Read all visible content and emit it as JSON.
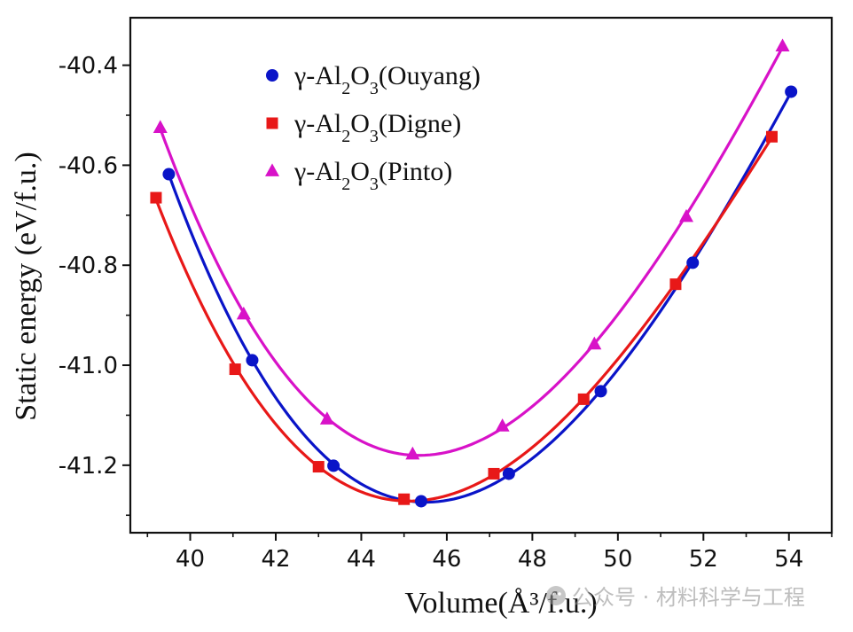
{
  "chart_data": {
    "type": "scatter",
    "title": "",
    "xlabel": "Volume(Å³/f.u.)",
    "ylabel": "Static energy (eV/f.u.)",
    "xlim": [
      38.6,
      55.0
    ],
    "ylim": [
      -41.335,
      -40.305
    ],
    "xticks": [
      40,
      42,
      44,
      46,
      48,
      50,
      52,
      54
    ],
    "xtick_labels": [
      "40",
      "42",
      "44",
      "46",
      "48",
      "50",
      "52",
      "54"
    ],
    "yticks": [
      -41.2,
      -41.0,
      -40.8,
      -40.6,
      -40.4
    ],
    "ytick_labels": [
      "-41.2",
      "-41.0",
      "-40.8",
      "-40.6",
      "-40.4"
    ],
    "grid": false,
    "legend_position": "top-left",
    "series": [
      {
        "name": "γ-Al₂O₃(Ouyang)",
        "label_prefix": "γ-Al",
        "sub1": "2",
        "label_mid": "O",
        "sub2": "3",
        "label_suffix": "(Ouyang)",
        "color": "#0a14c8",
        "marker": "circle",
        "x": [
          39.5,
          41.45,
          43.35,
          45.4,
          47.45,
          49.6,
          51.75,
          54.05
        ],
        "y": [
          -40.618,
          -40.99,
          -41.201,
          -41.272,
          -41.217,
          -41.052,
          -40.795,
          -40.453
        ]
      },
      {
        "name": "γ-Al₂O₃(Digne)",
        "label_prefix": "γ-Al",
        "sub1": "2",
        "label_mid": "O",
        "sub2": "3",
        "label_suffix": "(Digne)",
        "color": "#e81818",
        "marker": "square",
        "x": [
          39.2,
          41.05,
          43.0,
          45.0,
          47.1,
          49.2,
          51.35,
          53.6
        ],
        "y": [
          -40.665,
          -41.008,
          -41.203,
          -41.268,
          -41.217,
          -41.068,
          -40.838,
          -40.543
        ]
      },
      {
        "name": "γ-Al₂O₃(Pinto)",
        "label_prefix": "γ-Al",
        "sub1": "2",
        "label_mid": "O",
        "sub2": "3",
        "label_suffix": "(Pinto)",
        "color": "#d812c8",
        "marker": "triangle",
        "x": [
          39.3,
          41.25,
          43.2,
          45.2,
          47.3,
          49.45,
          51.6,
          53.85
        ],
        "y": [
          -40.525,
          -40.898,
          -41.108,
          -41.178,
          -41.122,
          -40.958,
          -40.703,
          -40.362
        ]
      }
    ]
  },
  "watermark": "公众号 · 材料科学与工程"
}
